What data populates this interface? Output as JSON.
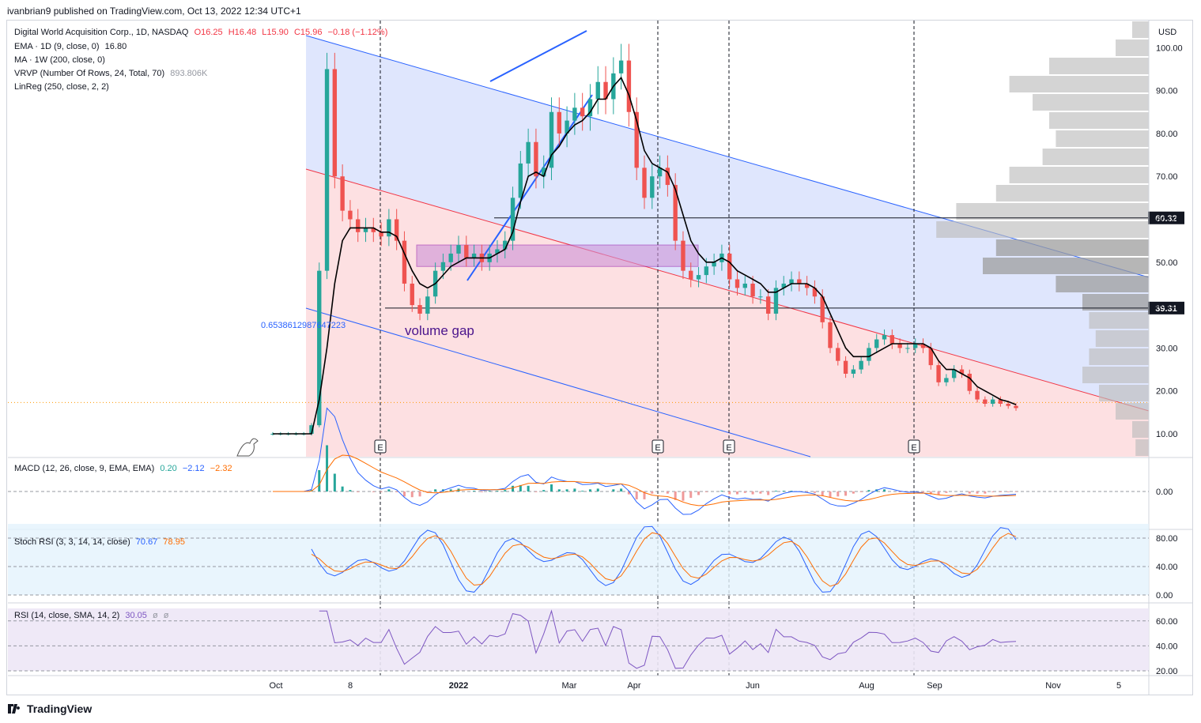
{
  "header": {
    "published": "ivanbrian9 published on TradingView.com, Oct 13, 2022 12:34 UTC+1"
  },
  "legend": {
    "symbol": "Digital World Acquisition Corp., 1D, NASDAQ",
    "open": "O16.25",
    "high": "H16.48",
    "low": "L15.90",
    "close": "C15.96",
    "change": "−0.18 (−1.12%)",
    "ema": "EMA · 1D (9, close, 0)",
    "ema_value": "16.80",
    "ma": "MA · 1W (200, close, 0)",
    "vrvp": "VRVP (Number Of Rows, 24, Total, 70)",
    "vrvp_value": "893.806K",
    "linreg": "LinReg (250, close, 2, 2)",
    "macd": "MACD (12, 26, close, 9, EMA, EMA)",
    "macd_v1": "0.20",
    "macd_v2": "−2.12",
    "macd_v3": "−2.32",
    "stoch": "Stoch RSI (3, 3, 14, 14, close)",
    "stoch_v1": "70.67",
    "stoch_v2": "78.95",
    "rsi": "RSI (14, close, SMA, 14, 2)",
    "rsi_v1": "30.05",
    "rsi_v2": "ø",
    "rsi_v3": "ø"
  },
  "footer": {
    "brand": "TradingView"
  },
  "chart_data": {
    "type": "candlestick",
    "currency": "USD",
    "price_axis": [
      10,
      20,
      30,
      40,
      50,
      60,
      70,
      80,
      90,
      100
    ],
    "price_axis_labels": [
      "10.00",
      "20.00",
      "30.00",
      "40.00",
      "50.00",
      "60.00",
      "70.00",
      "80.00",
      "90.00",
      "100.00"
    ],
    "x_axis_labels": [
      "Oct",
      "8",
      "2022",
      "Mar",
      "Apr",
      "Jun",
      "Aug",
      "Sep",
      "Nov",
      "5"
    ],
    "price_tags": [
      "60.32",
      "39.31"
    ],
    "horizontal_levels": [
      60.32,
      39.31
    ],
    "annotations": [
      "volume gap",
      "0.6538612987647223"
    ],
    "earnings_markers": [
      "E",
      "E",
      "E",
      "E"
    ],
    "close_series": [
      10,
      10,
      10,
      10,
      10,
      12,
      48,
      95,
      70,
      62,
      60,
      57,
      58,
      57,
      56,
      60,
      55,
      45,
      40,
      38,
      42,
      48,
      50,
      52,
      54,
      51,
      52,
      50,
      52,
      53,
      55,
      65,
      73,
      78,
      70,
      72,
      85,
      80,
      83,
      86,
      84,
      88,
      92,
      88,
      94,
      97,
      85,
      72,
      65,
      70,
      72,
      68,
      55,
      48,
      46,
      47,
      49,
      50,
      52,
      46,
      44,
      45,
      42,
      42,
      38,
      44,
      45,
      46,
      45,
      44,
      42,
      36,
      30,
      27,
      24,
      25,
      27,
      30,
      32,
      33,
      31,
      30,
      30,
      31,
      30,
      26,
      22,
      23,
      25,
      24,
      20,
      18,
      17,
      18,
      17,
      16.5,
      16
    ],
    "ema_series": [
      10,
      10,
      10,
      10,
      10,
      10,
      18,
      30,
      45,
      55,
      58,
      58,
      58,
      58,
      57,
      57,
      56,
      52,
      48,
      45,
      44,
      45,
      47,
      49,
      50,
      51,
      51,
      51,
      51,
      52,
      53,
      57,
      64,
      70,
      71,
      70,
      75,
      77,
      80,
      82,
      83,
      85,
      88,
      88,
      91,
      93,
      89,
      83,
      76,
      73,
      72,
      71,
      67,
      61,
      55,
      52,
      50,
      50,
      51,
      50,
      48,
      47,
      46,
      45,
      43,
      43,
      44,
      45,
      45,
      45,
      44,
      42,
      38,
      34,
      30,
      28,
      28,
      28,
      29,
      30,
      31,
      31,
      31,
      31,
      31,
      30,
      27,
      25,
      25,
      24,
      23,
      21,
      20,
      19,
      18,
      17.5,
      16.8
    ],
    "macd": {
      "histogram_last": 0.2,
      "macd_last": -2.12,
      "signal_last": -2.32
    },
    "stoch_rsi": {
      "k_last": 70.67,
      "d_last": 78.95,
      "levels": [
        0,
        40,
        80
      ]
    },
    "rsi": {
      "last": 30.05,
      "levels": [
        20,
        40,
        60
      ]
    },
    "volume_profile_rows": [
      0.05,
      0.1,
      0.3,
      0.42,
      0.35,
      0.3,
      0.28,
      0.32,
      0.42,
      0.46,
      0.58,
      0.64,
      0.46,
      0.5,
      0.28,
      0.2,
      0.18,
      0.16,
      0.18,
      0.2,
      0.15,
      0.1,
      0.05,
      0.04
    ],
    "colors": {
      "up": "#26a69a",
      "down": "#ef5350",
      "ema": "#000000",
      "channel_upper": "#2962ff",
      "channel_mid": "#f23645",
      "macd": "#2962ff",
      "signal": "#ff6d00"
    }
  }
}
